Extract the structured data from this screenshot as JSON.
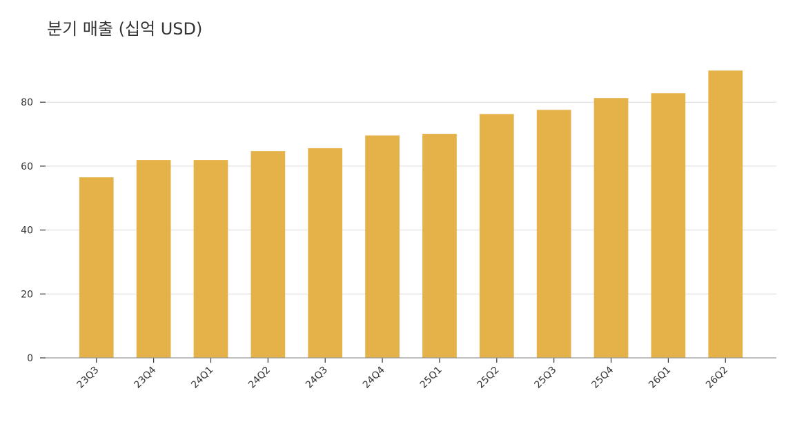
{
  "chart_data": {
    "type": "bar",
    "title": "분기 매출 (십억 USD)",
    "categories": [
      "23Q3",
      "23Q4",
      "24Q1",
      "24Q2",
      "24Q3",
      "24Q4",
      "25Q1",
      "25Q2",
      "25Q3",
      "25Q4",
      "26Q1",
      "26Q2"
    ],
    "values": [
      56.5,
      61.9,
      61.9,
      64.7,
      65.6,
      69.6,
      70.1,
      76.3,
      77.6,
      81.3,
      82.8,
      89.9
    ],
    "color": "#e5b249",
    "ylim": [
      0,
      94.5
    ],
    "yticks": [
      0,
      20,
      40,
      60,
      80
    ],
    "grid": true
  }
}
